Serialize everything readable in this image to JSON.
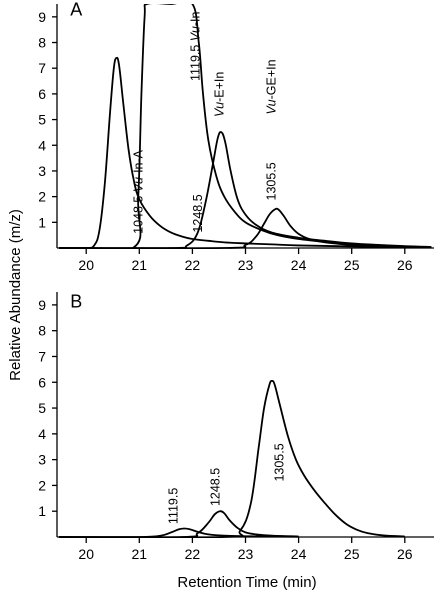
{
  "figure": {
    "ylabel": "Relative Abundance (m/z)",
    "xlabel": "Retention Time (min)"
  },
  "chart_data": [
    {
      "type": "line",
      "panel": "A",
      "title": "",
      "xlabel": "",
      "ylabel": "Relative Abundance (m/z)",
      "xlim": [
        19.45,
        26.55
      ],
      "ylim": [
        0,
        9.5
      ],
      "xticks": [
        20,
        21,
        22,
        23,
        24,
        25,
        26
      ],
      "yticks": [
        1,
        2,
        3,
        4,
        5,
        6,
        7,
        8,
        9
      ],
      "grid": false,
      "series": [
        {
          "name": "1048.5 Vu-In-A",
          "x": [
            20.0,
            20.15,
            20.25,
            20.35,
            20.45,
            20.52,
            20.57,
            20.62,
            20.7,
            20.8,
            20.9,
            21.0,
            21.2,
            21.4,
            21.6,
            21.8,
            22.0,
            22.3,
            22.6,
            23.0,
            23.5,
            24.0,
            25.0,
            26.5
          ],
          "y": [
            0,
            0.1,
            0.7,
            2.5,
            5.3,
            7.0,
            7.4,
            7.1,
            5.6,
            3.8,
            2.6,
            1.9,
            1.25,
            0.85,
            0.6,
            0.45,
            0.35,
            0.28,
            0.22,
            0.18,
            0.14,
            0.1,
            0.06,
            0.03
          ]
        },
        {
          "name": "1119.5 Vu-In",
          "x": [
            20.88,
            20.98,
            21.04,
            21.1,
            21.15,
            21.6,
            22.0,
            22.12,
            22.2,
            22.3,
            22.45,
            22.6,
            22.8,
            23.0,
            23.3,
            23.6,
            24.0,
            24.5,
            25.0,
            25.5,
            26.0,
            26.5
          ],
          "y": [
            0,
            2.0,
            6.0,
            9.0,
            9.5,
            9.5,
            9.5,
            8.0,
            6.0,
            4.2,
            2.8,
            2.0,
            1.4,
            1.0,
            0.7,
            0.5,
            0.35,
            0.24,
            0.16,
            0.1,
            0.06,
            0.03
          ],
          "clipped_at_top": true
        },
        {
          "name": "1248.5 Vu-E+In",
          "x": [
            21.6,
            21.9,
            22.1,
            22.25,
            22.38,
            22.48,
            22.55,
            22.62,
            22.72,
            22.85,
            23.0,
            23.2,
            23.5,
            24.0,
            24.5,
            25.0,
            25.5,
            26.0,
            26.5
          ],
          "y": [
            0,
            0.1,
            0.6,
            1.8,
            3.2,
            4.3,
            4.5,
            4.1,
            3.0,
            1.9,
            1.3,
            0.9,
            0.6,
            0.4,
            0.28,
            0.18,
            0.12,
            0.07,
            0.04
          ]
        },
        {
          "name": "1305.5 Vu-GE+In",
          "x": [
            22.6,
            23.0,
            23.2,
            23.35,
            23.45,
            23.55,
            23.62,
            23.72,
            23.85,
            24.0,
            24.2,
            24.5,
            25.0,
            25.5,
            26.0,
            26.5
          ],
          "y": [
            0,
            0.12,
            0.45,
            0.95,
            1.3,
            1.5,
            1.5,
            1.25,
            0.85,
            0.55,
            0.35,
            0.22,
            0.12,
            0.07,
            0.04,
            0.02
          ]
        }
      ],
      "annotations": [
        {
          "panel_letter": "A"
        },
        {
          "text": "1048.5",
          "italic": "Vu",
          "rest": "-In-A"
        },
        {
          "text": "1119.5",
          "italic": "Vu",
          "rest": "-In"
        },
        {
          "text": "1248.5"
        },
        {
          "italic": "Vu",
          "rest": "-E+In"
        },
        {
          "italic": "Vu",
          "rest": "-GE+In"
        },
        {
          "text": "1305.5"
        }
      ]
    },
    {
      "type": "line",
      "panel": "B",
      "title": "",
      "xlabel": "Retention Time (min)",
      "ylabel": "Relative Abundance (m/z)",
      "xlim": [
        19.45,
        26.55
      ],
      "ylim": [
        0,
        9.5
      ],
      "xticks": [
        20,
        21,
        22,
        23,
        24,
        25,
        26
      ],
      "yticks": [
        1,
        2,
        3,
        4,
        5,
        6,
        7,
        8,
        9
      ],
      "grid": false,
      "series": [
        {
          "name": "1119.5",
          "x": [
            21.0,
            21.4,
            21.6,
            21.75,
            21.85,
            21.95,
            22.1,
            22.3,
            22.6,
            23.0,
            23.5,
            24.0
          ],
          "y": [
            0,
            0.05,
            0.18,
            0.3,
            0.33,
            0.3,
            0.2,
            0.1,
            0.05,
            0.03,
            0.02,
            0.01
          ]
        },
        {
          "name": "1248.5",
          "x": [
            21.8,
            22.1,
            22.3,
            22.42,
            22.52,
            22.6,
            22.7,
            22.85,
            23.0,
            23.2,
            23.5,
            24.0
          ],
          "y": [
            0,
            0.15,
            0.55,
            0.88,
            1.0,
            0.92,
            0.65,
            0.35,
            0.18,
            0.1,
            0.05,
            0.02
          ]
        },
        {
          "name": "1305.5",
          "x": [
            22.6,
            22.9,
            23.1,
            23.25,
            23.35,
            23.45,
            23.5,
            23.55,
            23.65,
            23.8,
            23.95,
            24.1,
            24.3,
            24.5,
            24.7,
            24.9,
            25.1,
            25.3,
            25.6,
            26.0
          ],
          "y": [
            0,
            0.25,
            1.3,
            3.5,
            5.0,
            5.9,
            6.05,
            5.9,
            5.1,
            3.9,
            3.0,
            2.4,
            1.8,
            1.3,
            0.85,
            0.5,
            0.28,
            0.15,
            0.06,
            0.02
          ]
        }
      ],
      "annotations": [
        {
          "panel_letter": "B"
        },
        {
          "text": "1119.5"
        },
        {
          "text": "1248.5"
        },
        {
          "text": "1305.5"
        }
      ]
    }
  ]
}
